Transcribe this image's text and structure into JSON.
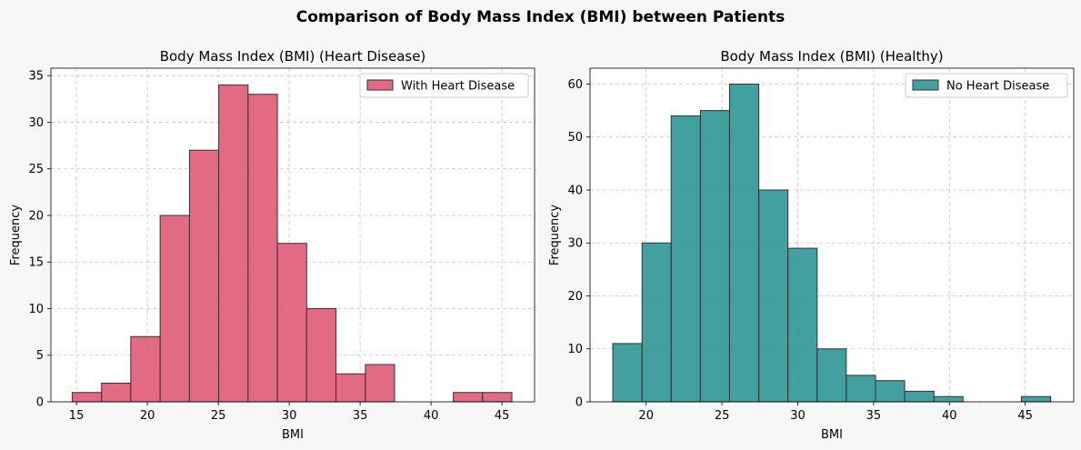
{
  "figure_title": "Comparison of Body Mass Index (BMI) between Patients",
  "chart_data": [
    {
      "type": "bar",
      "title": "Body Mass Index (BMI) (Heart Disease)",
      "xlabel": "BMI",
      "ylabel": "Frequency",
      "xlim": [
        13.2,
        47.3
      ],
      "ylim": [
        0,
        35.8
      ],
      "xticks": [
        15,
        20,
        25,
        30,
        35,
        40,
        45
      ],
      "yticks": [
        0,
        5,
        10,
        15,
        20,
        25,
        30,
        35
      ],
      "grid": true,
      "legend_position": "top-right",
      "color": "#e05a75",
      "edge_color": "#333333",
      "series": [
        {
          "name": "With Heart Disease",
          "bin_edges": [
            14.7,
            16.77,
            18.83,
            20.9,
            22.97,
            25.03,
            27.1,
            29.17,
            31.23,
            33.3,
            35.37,
            37.43,
            39.5,
            41.57,
            43.63,
            45.7
          ],
          "counts": [
            1,
            2,
            7,
            20,
            27,
            34,
            33,
            17,
            10,
            3,
            4,
            0,
            0,
            1,
            1
          ]
        }
      ]
    },
    {
      "type": "bar",
      "title": "Body Mass Index (BMI) (Healthy)",
      "xlabel": "BMI",
      "ylabel": "Frequency",
      "xlim": [
        16.3,
        48.2
      ],
      "ylim": [
        0,
        63
      ],
      "xticks": [
        20,
        25,
        30,
        35,
        40,
        45
      ],
      "yticks": [
        0,
        10,
        20,
        30,
        40,
        50,
        60
      ],
      "grid": true,
      "legend_position": "top-right",
      "color": "#2e9696",
      "edge_color": "#333333",
      "series": [
        {
          "name": "No Heart Disease",
          "bin_edges": [
            17.8,
            19.73,
            21.65,
            23.58,
            25.5,
            27.43,
            29.35,
            31.28,
            33.2,
            35.13,
            37.05,
            38.98,
            40.9,
            42.83,
            44.75,
            46.68
          ],
          "counts": [
            11,
            30,
            54,
            55,
            60,
            40,
            29,
            10,
            5,
            4,
            2,
            1,
            0,
            0,
            1
          ]
        }
      ]
    }
  ]
}
